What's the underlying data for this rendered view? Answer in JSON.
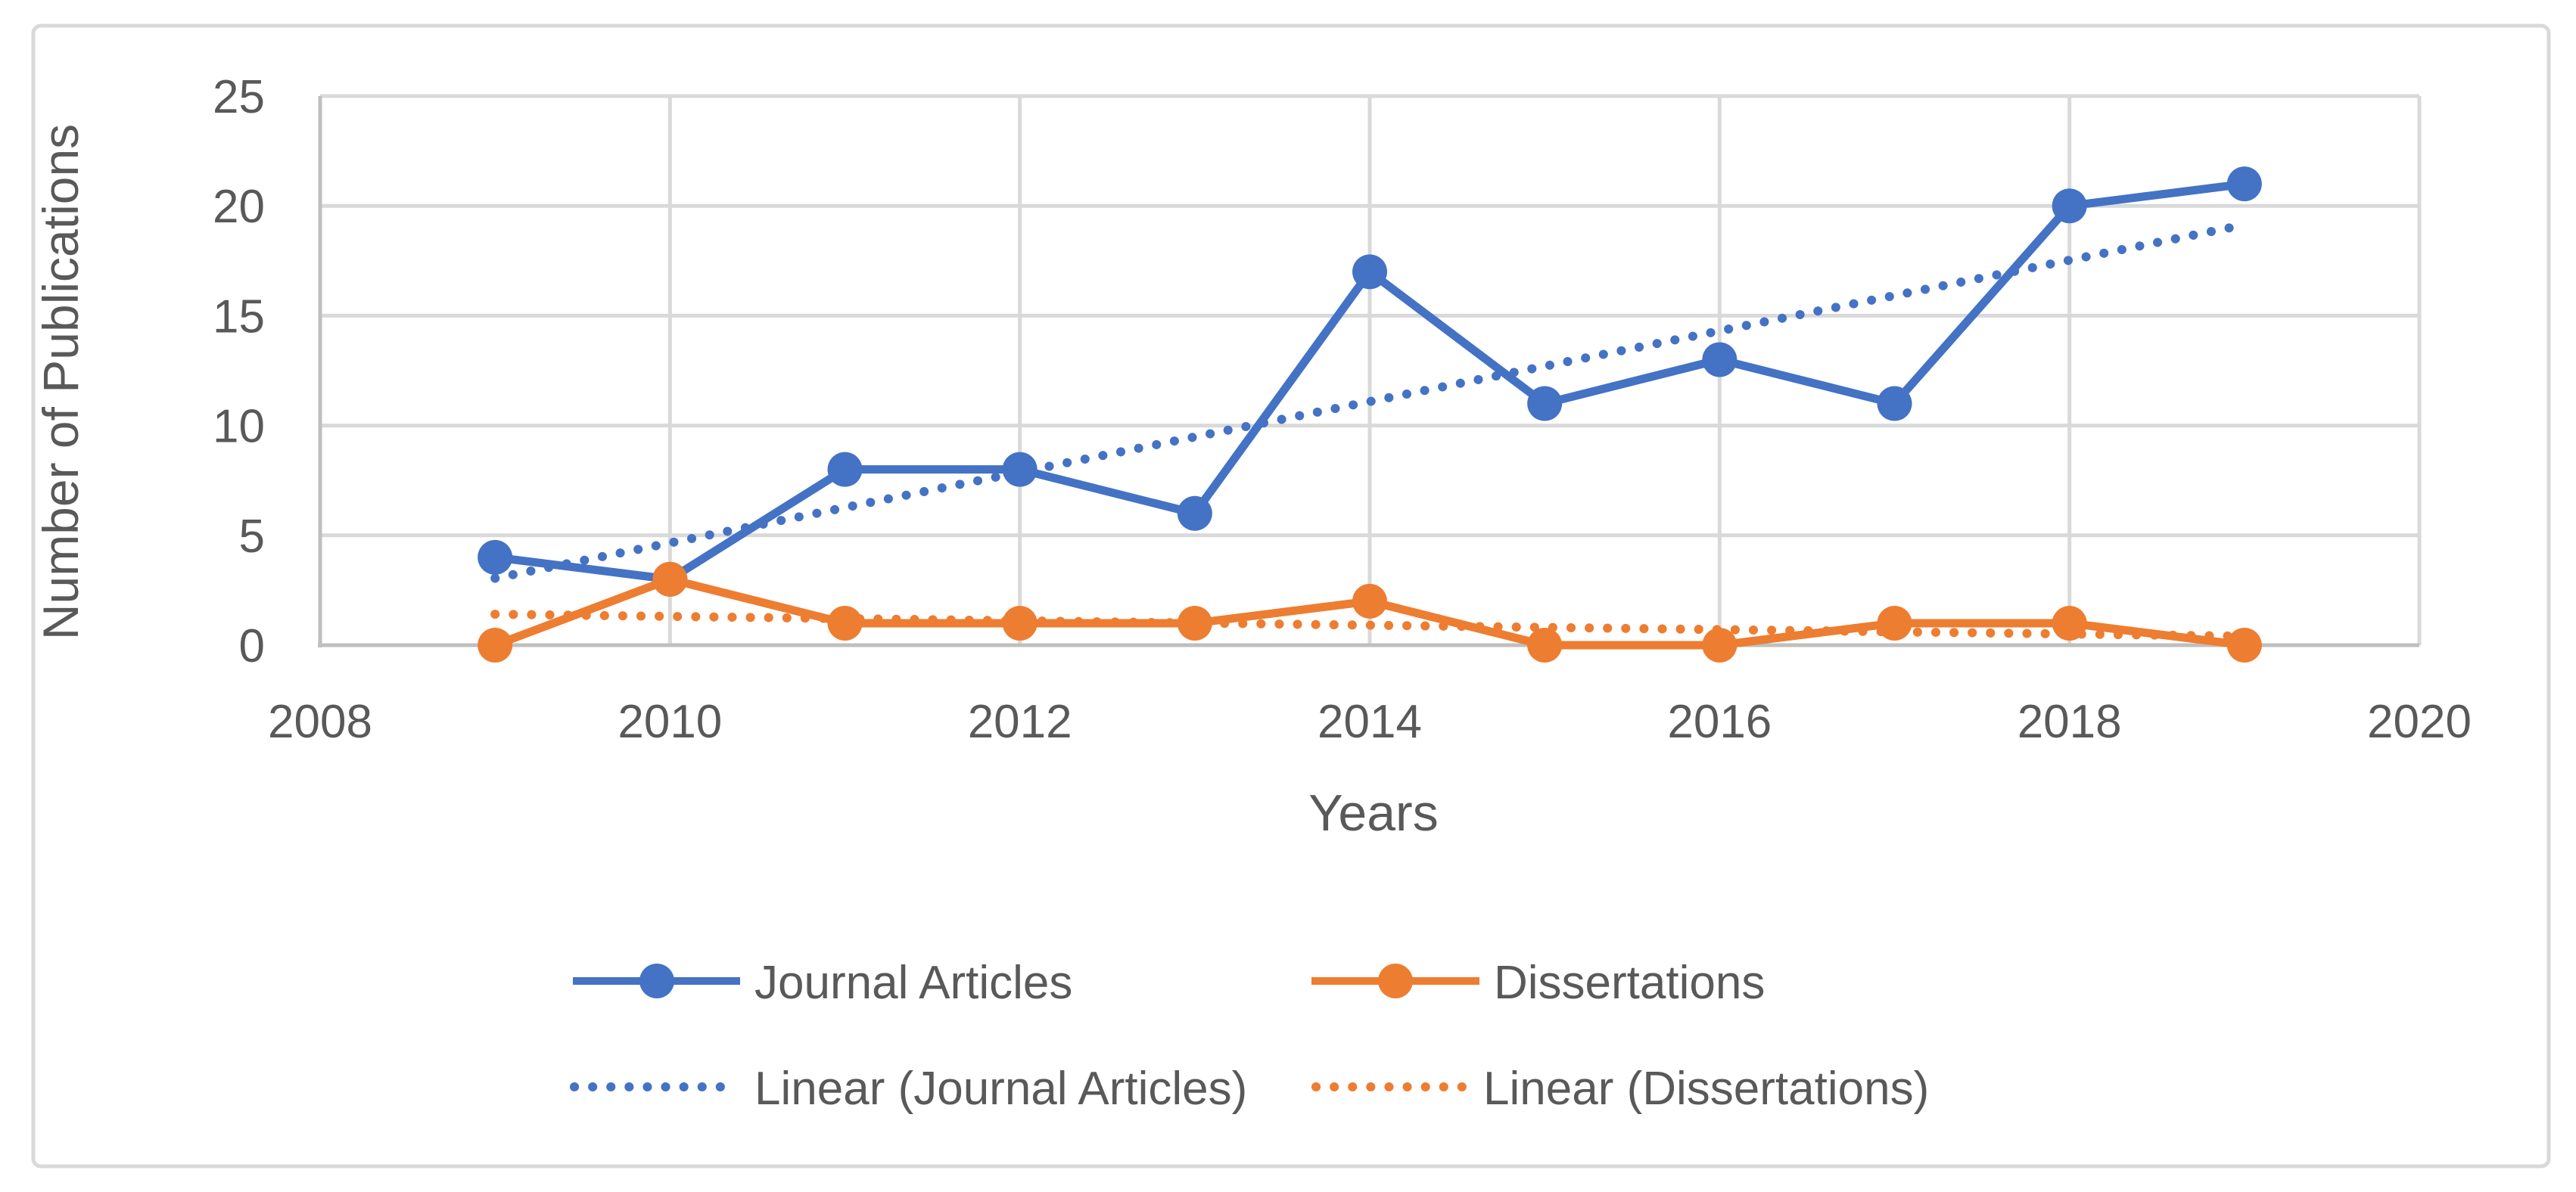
{
  "chart_data": {
    "type": "line",
    "title": "",
    "xlabel": "Years",
    "ylabel": "Number of Publications",
    "x": [
      2009,
      2010,
      2011,
      2012,
      2013,
      2014,
      2015,
      2016,
      2017,
      2018,
      2019
    ],
    "series": [
      {
        "name": "Journal Articles",
        "color": "#4472C4",
        "values": [
          4,
          3,
          8,
          8,
          6,
          17,
          11,
          13,
          11,
          20,
          21
        ],
        "style": "solid-with-markers"
      },
      {
        "name": "Dissertations",
        "color": "#ED7D31",
        "values": [
          0,
          3,
          1,
          1,
          1,
          2,
          0,
          0,
          1,
          1,
          0
        ],
        "style": "solid-with-markers"
      }
    ],
    "trendlines": [
      {
        "name": "Linear (Journal Articles)",
        "for": "Journal Articles",
        "color": "#4472C4",
        "style": "dotted"
      },
      {
        "name": "Linear (Dissertations)",
        "for": "Dissertations",
        "color": "#ED7D31",
        "style": "dotted"
      }
    ],
    "x_ticks": [
      2008,
      2010,
      2012,
      2014,
      2016,
      2018,
      2020
    ],
    "y_ticks": [
      0,
      5,
      10,
      15,
      20,
      25
    ],
    "xlim": [
      2008,
      2020
    ],
    "ylim": [
      0,
      25
    ],
    "grid": true,
    "legend_position": "bottom"
  },
  "colors": {
    "gridline": "#D9D9D9",
    "axis_line": "#BFBFBF",
    "border": "#D9D9D9",
    "axis_text": "#595959",
    "background": "#FFFFFF"
  }
}
